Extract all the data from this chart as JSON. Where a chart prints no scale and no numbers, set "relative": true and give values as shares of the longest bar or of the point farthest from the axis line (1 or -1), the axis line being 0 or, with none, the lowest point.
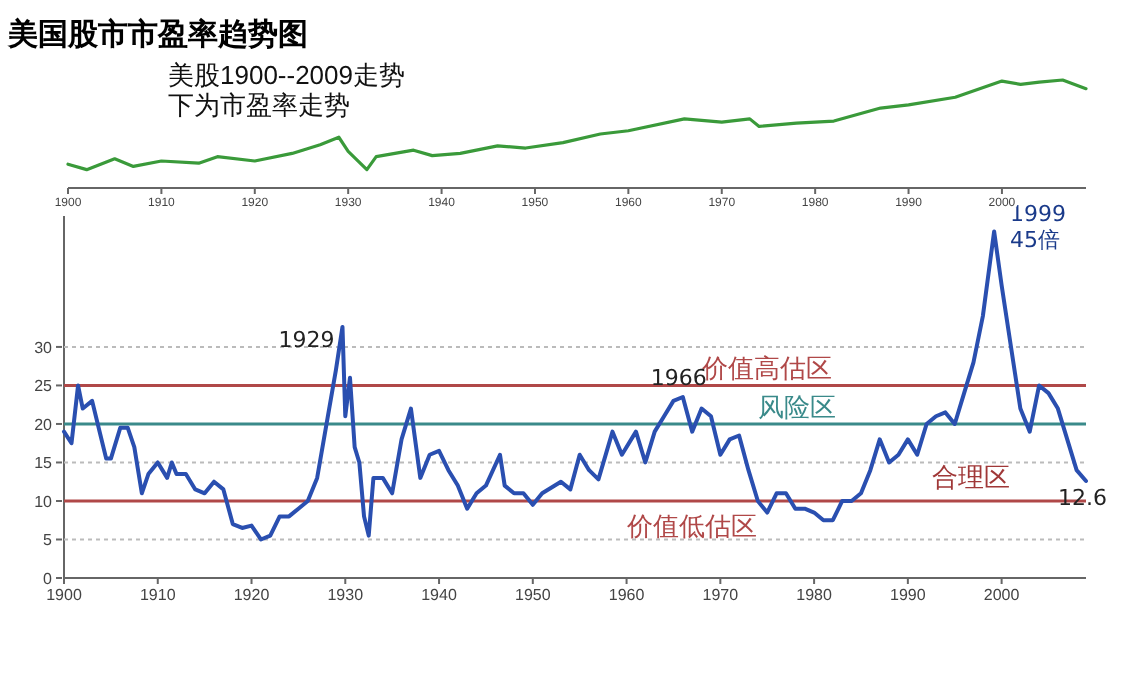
{
  "chart_data": [
    {
      "type": "line",
      "title": "美国股市市盈率趋势图",
      "relative": true,
      "annotations": [
        "美股1900--2009走势",
        "下为市盈率走势"
      ],
      "xlim": [
        1900,
        2009
      ],
      "xticks": [
        1900,
        1910,
        1920,
        1930,
        1940,
        1950,
        1960,
        1970,
        1980,
        1990,
        2000
      ],
      "tick_labels": "x",
      "series": [
        {
          "color": "#3a9a3a",
          "x": [
            1900,
            1902,
            1905,
            1907,
            1910,
            1914,
            1916,
            1920,
            1924,
            1927,
            1929,
            1930,
            1932,
            1933,
            1937,
            1939,
            1942,
            1946,
            1949,
            1953,
            1957,
            1960,
            1966,
            1970,
            1973,
            1974,
            1978,
            1982,
            1987,
            1990,
            1995,
            2000,
            2002,
            2004,
            2006.5,
            2009
          ],
          "values": [
            0.22,
            0.17,
            0.27,
            0.2,
            0.25,
            0.23,
            0.29,
            0.25,
            0.32,
            0.4,
            0.47,
            0.34,
            0.17,
            0.29,
            0.35,
            0.3,
            0.32,
            0.39,
            0.37,
            0.42,
            0.5,
            0.53,
            0.64,
            0.61,
            0.64,
            0.57,
            0.6,
            0.62,
            0.74,
            0.77,
            0.84,
            0.99,
            0.96,
            0.98,
            1.0,
            0.92
          ]
        }
      ]
    },
    {
      "type": "line",
      "xlim": [
        1900,
        2009
      ],
      "ylim": [
        0,
        47
      ],
      "xticks": [
        1900,
        1910,
        1920,
        1930,
        1940,
        1950,
        1960,
        1970,
        1980,
        1990,
        2000
      ],
      "yticks": [
        0,
        5,
        10,
        15,
        20,
        25,
        30
      ],
      "series": [
        {
          "color": "#2a4fb0",
          "x": [
            1900,
            1900.8,
            1901.5,
            1902,
            1903,
            1903.8,
            1904.5,
            1905,
            1906,
            1906.8,
            1907.5,
            1908.3,
            1909,
            1910,
            1911,
            1911.5,
            1912,
            1913,
            1914,
            1915,
            1916,
            1917,
            1918,
            1919,
            1920,
            1921,
            1922,
            1923,
            1924,
            1925,
            1926,
            1927,
            1928,
            1929,
            1929.7,
            1930,
            1930.5,
            1931,
            1931.5,
            1932,
            1932.5,
            1933,
            1934,
            1935,
            1936,
            1937,
            1938,
            1939,
            1940,
            1941,
            1942,
            1943,
            1944,
            1945,
            1946.5,
            1947,
            1948,
            1949,
            1950,
            1951,
            1953,
            1954,
            1955,
            1956,
            1957,
            1958.5,
            1959.5,
            1961,
            1962,
            1963,
            1964,
            1965,
            1966,
            1967,
            1968,
            1969,
            1970,
            1971,
            1972,
            1973,
            1974,
            1975,
            1976,
            1977,
            1978,
            1979,
            1980,
            1981,
            1982,
            1983,
            1984,
            1985,
            1986,
            1987,
            1988,
            1989,
            1990,
            1991,
            1992,
            1993,
            1994,
            1995,
            1996,
            1997,
            1998,
            1999.2,
            2000,
            2001,
            2002,
            2003,
            2004,
            2005,
            2006,
            2007,
            2008,
            2009
          ],
          "values": [
            19,
            17.5,
            25,
            22,
            23,
            19,
            15.5,
            15.5,
            19.5,
            19.5,
            17,
            11,
            13.5,
            15,
            13,
            15,
            13.5,
            13.5,
            11.5,
            11,
            12.5,
            11.5,
            7,
            6.5,
            6.8,
            5,
            5.5,
            8,
            8,
            9,
            10,
            13,
            20,
            27,
            32.6,
            21,
            26,
            17,
            15,
            8,
            5.5,
            13,
            13,
            11,
            18,
            22,
            13,
            16,
            16.5,
            14,
            12,
            9,
            11,
            12,
            16,
            12,
            11,
            11,
            9.5,
            11,
            12.5,
            11.5,
            16,
            14,
            12.8,
            19,
            16,
            19,
            15,
            19,
            21,
            23,
            23.5,
            19,
            22,
            21,
            16,
            18,
            18.5,
            14,
            10,
            8.5,
            11,
            11,
            9,
            9,
            8.5,
            7.5,
            7.5,
            10,
            10,
            11,
            14,
            18,
            15,
            16,
            18,
            16,
            20,
            21,
            21.5,
            20,
            24,
            28,
            34,
            45,
            38,
            30,
            22,
            19,
            25,
            24,
            22,
            18,
            14,
            12.6
          ]
        }
      ],
      "ref_lines": [
        {
          "axis": "y",
          "value": 25,
          "color": "#b04848",
          "label": "价值高估区"
        },
        {
          "axis": "y",
          "value": 20,
          "color": "#3a8a8a",
          "label": "风险区"
        },
        {
          "axis": "y",
          "value": 10,
          "color": "#b04848",
          "label": "价值低估区"
        },
        {
          "axis": "y",
          "value": 5,
          "color": "#bbbbbb",
          "line_style": "dotted"
        },
        {
          "axis": "y",
          "value": 15,
          "color": "#bbbbbb",
          "line_style": "dotted"
        },
        {
          "axis": "y",
          "value": 30,
          "color": "#bbbbbb",
          "line_style": "dotted"
        }
      ],
      "annotations": [
        {
          "text": "1929",
          "x": 1929.7,
          "y": 32.6
        },
        {
          "text": "1966",
          "x": 1966,
          "y": 23.5
        },
        {
          "text": "1999",
          "x": 1999.2,
          "y": 45
        },
        {
          "text": "45倍",
          "x": 1999.2,
          "y": 45
        },
        {
          "text": "12.6",
          "x": 2009,
          "y": 12.6
        },
        "合理区"
      ]
    }
  ]
}
